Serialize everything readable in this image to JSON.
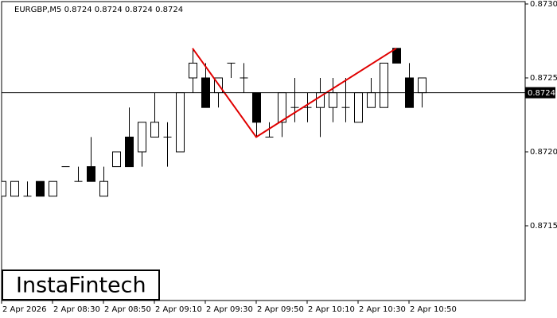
{
  "chart_data": {
    "type": "candlestick",
    "title": "EURGBP,M5  0.8724 0.8724 0.8724 0.8724",
    "brand": "InstaFintech",
    "categories": [
      "2 Apr 2026",
      null,
      null,
      null,
      "2 Apr 08:30",
      null,
      null,
      null,
      "2 Apr 08:50",
      null,
      null,
      null,
      "2 Apr 09:10",
      null,
      null,
      null,
      "2 Apr 09:30",
      null,
      null,
      null,
      "2 Apr 09:50",
      null,
      null,
      null,
      "2 Apr 10:10",
      null,
      null,
      null,
      "2 Apr 10:30",
      null,
      null,
      null,
      "2 Apr 10:50",
      null
    ],
    "open": [
      0.8717,
      0.8717,
      0.8717,
      0.8718,
      0.8717,
      0.8719,
      0.8718,
      0.8719,
      0.8717,
      0.8719,
      0.8721,
      0.872,
      0.8721,
      0.8721,
      0.872,
      0.8725,
      0.8725,
      0.8724,
      0.8726,
      0.8725,
      0.8724,
      0.8721,
      0.8722,
      0.8723,
      0.8723,
      0.8723,
      0.8723,
      0.8723,
      0.8722,
      0.8723,
      0.8723,
      0.8727,
      0.8725,
      0.8724
    ],
    "high": [
      0.8718,
      0.8718,
      0.8718,
      0.8718,
      0.8718,
      0.8719,
      0.8719,
      0.8721,
      0.8719,
      0.872,
      0.8723,
      0.8722,
      0.8724,
      0.8722,
      0.8724,
      0.8727,
      0.8726,
      0.8725,
      0.8726,
      0.8726,
      0.8724,
      0.8722,
      0.8724,
      0.8725,
      0.8724,
      0.8725,
      0.8725,
      0.8725,
      0.8724,
      0.8725,
      0.8726,
      0.8727,
      0.8726,
      0.8725
    ],
    "low": [
      0.8717,
      0.8717,
      0.8717,
      0.8717,
      0.8717,
      0.8719,
      0.8718,
      0.8718,
      0.8717,
      0.8719,
      0.8719,
      0.8719,
      0.8721,
      0.8719,
      0.872,
      0.8724,
      0.8723,
      0.8723,
      0.8725,
      0.8724,
      0.8721,
      0.8721,
      0.8721,
      0.8722,
      0.8722,
      0.8721,
      0.8722,
      0.8722,
      0.8722,
      0.8723,
      0.8723,
      0.8726,
      0.8723,
      0.8723
    ],
    "close": [
      0.8718,
      0.8718,
      0.8717,
      0.8717,
      0.8718,
      0.8719,
      0.8718,
      0.8718,
      0.8718,
      0.872,
      0.8719,
      0.8722,
      0.8722,
      0.8721,
      0.8724,
      0.8726,
      0.8723,
      0.8725,
      0.8726,
      0.8725,
      0.8722,
      0.8721,
      0.8724,
      0.8723,
      0.8723,
      0.8724,
      0.8724,
      0.8723,
      0.8724,
      0.8724,
      0.8726,
      0.8726,
      0.8723,
      0.8725
    ],
    "up_color": "#ffffff",
    "down_color": "#000000",
    "ylim": [
      0.871,
      0.873
    ],
    "yticks": [
      {
        "value": 0.873,
        "label": "0.8730"
      },
      0.8725,
      {
        "value": 0.872,
        "label": "0.8720"
      },
      0.8715
    ],
    "current_price": 0.8724,
    "pattern": {
      "color": "#e00000",
      "indices": [
        15,
        20,
        31
      ],
      "values": [
        0.8727,
        0.8721,
        0.8727
      ]
    }
  }
}
